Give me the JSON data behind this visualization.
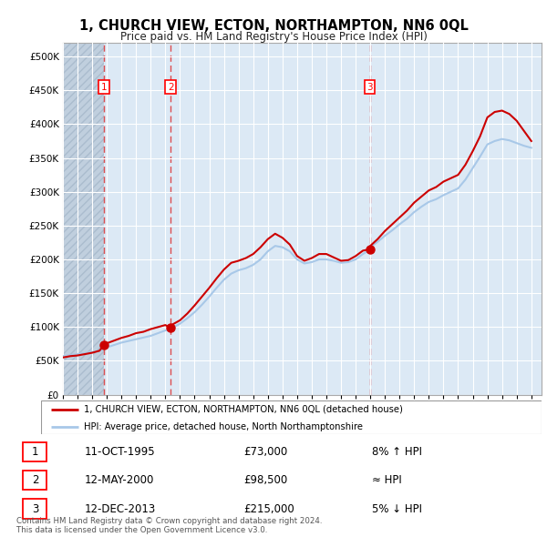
{
  "title": "1, CHURCH VIEW, ECTON, NORTHAMPTON, NN6 0QL",
  "subtitle": "Price paid vs. HM Land Registry's House Price Index (HPI)",
  "background_color": "#ffffff",
  "plot_bg_color": "#dce9f5",
  "hatch_color": "#c0cfde",
  "grid_color": "#ffffff",
  "ylim": [
    0,
    520000
  ],
  "xlim_start": 1993.0,
  "xlim_end": 2025.7,
  "purchase_dates": [
    1995.79,
    2000.37,
    2013.96
  ],
  "purchase_prices": [
    73000,
    98500,
    215000
  ],
  "purchase_labels": [
    "1",
    "2",
    "3"
  ],
  "hpi_line_color": "#a8c8e8",
  "price_line_color": "#cc0000",
  "marker_color": "#cc0000",
  "dashed_line_color": "#dd3333",
  "legend_entries": [
    "1, CHURCH VIEW, ECTON, NORTHAMPTON, NN6 0QL (detached house)",
    "HPI: Average price, detached house, North Northamptonshire"
  ],
  "table_rows": [
    [
      "1",
      "11-OCT-1995",
      "£73,000",
      "8% ↑ HPI"
    ],
    [
      "2",
      "12-MAY-2000",
      "£98,500",
      "≈ HPI"
    ],
    [
      "3",
      "12-DEC-2013",
      "£215,000",
      "5% ↓ HPI"
    ]
  ],
  "footer": "Contains HM Land Registry data © Crown copyright and database right 2024.\nThis data is licensed under the Open Government Licence v3.0.",
  "hpi_years": [
    1993.0,
    1993.5,
    1994.0,
    1994.5,
    1995.0,
    1995.5,
    1995.79,
    1996.0,
    1996.5,
    1997.0,
    1997.5,
    1998.0,
    1998.5,
    1999.0,
    1999.5,
    2000.0,
    2000.37,
    2000.5,
    2001.0,
    2001.5,
    2002.0,
    2002.5,
    2003.0,
    2003.5,
    2004.0,
    2004.5,
    2005.0,
    2005.5,
    2006.0,
    2006.5,
    2007.0,
    2007.5,
    2008.0,
    2008.5,
    2009.0,
    2009.5,
    2010.0,
    2010.5,
    2011.0,
    2011.5,
    2012.0,
    2012.5,
    2013.0,
    2013.5,
    2013.96,
    2014.0,
    2014.5,
    2015.0,
    2015.5,
    2016.0,
    2016.5,
    2017.0,
    2017.5,
    2018.0,
    2018.5,
    2019.0,
    2019.5,
    2020.0,
    2020.5,
    2021.0,
    2021.5,
    2022.0,
    2022.5,
    2023.0,
    2023.5,
    2024.0,
    2024.5,
    2025.0
  ],
  "hpi_values": [
    57000,
    58500,
    60000,
    61500,
    63000,
    65000,
    67500,
    70000,
    73500,
    77000,
    79500,
    82000,
    84500,
    87000,
    91000,
    95000,
    97000,
    99000,
    105000,
    113000,
    122000,
    133000,
    145000,
    158000,
    170000,
    179000,
    184000,
    187000,
    192000,
    200000,
    212000,
    220000,
    218000,
    212000,
    200000,
    194000,
    196000,
    200000,
    200000,
    198000,
    195000,
    196000,
    200000,
    208000,
    214000,
    218000,
    226000,
    235000,
    243000,
    252000,
    260000,
    270000,
    278000,
    285000,
    289000,
    295000,
    300000,
    305000,
    318000,
    335000,
    352000,
    370000,
    375000,
    378000,
    376000,
    372000,
    368000,
    365000
  ],
  "price_years": [
    1993.0,
    1993.5,
    1994.0,
    1994.5,
    1995.0,
    1995.5,
    1995.79,
    1996.0,
    1996.5,
    1997.0,
    1997.5,
    1998.0,
    1998.5,
    1999.0,
    1999.5,
    2000.0,
    2000.37,
    2000.5,
    2001.0,
    2001.5,
    2002.0,
    2002.5,
    2003.0,
    2003.5,
    2004.0,
    2004.5,
    2005.0,
    2005.5,
    2006.0,
    2006.5,
    2007.0,
    2007.5,
    2008.0,
    2008.5,
    2009.0,
    2009.5,
    2010.0,
    2010.5,
    2011.0,
    2011.5,
    2012.0,
    2012.5,
    2013.0,
    2013.5,
    2013.96,
    2014.0,
    2014.5,
    2015.0,
    2015.5,
    2016.0,
    2016.5,
    2017.0,
    2017.5,
    2018.0,
    2018.5,
    2019.0,
    2019.5,
    2020.0,
    2020.5,
    2021.0,
    2021.5,
    2022.0,
    2022.5,
    2023.0,
    2023.5,
    2024.0,
    2024.5,
    2025.0
  ],
  "price_values": [
    55000,
    57000,
    58000,
    60000,
    62000,
    65000,
    73000,
    76000,
    80000,
    84000,
    87000,
    91000,
    93000,
    97000,
    100000,
    103000,
    98500,
    104000,
    110000,
    120000,
    132000,
    145000,
    158000,
    172000,
    185000,
    195000,
    198000,
    202000,
    208000,
    218000,
    230000,
    238000,
    232000,
    222000,
    205000,
    198000,
    202000,
    208000,
    208000,
    203000,
    198000,
    199000,
    205000,
    213000,
    215000,
    220000,
    230000,
    242000,
    252000,
    262000,
    272000,
    284000,
    293000,
    302000,
    307000,
    315000,
    320000,
    325000,
    340000,
    360000,
    382000,
    410000,
    418000,
    420000,
    415000,
    405000,
    390000,
    375000
  ]
}
